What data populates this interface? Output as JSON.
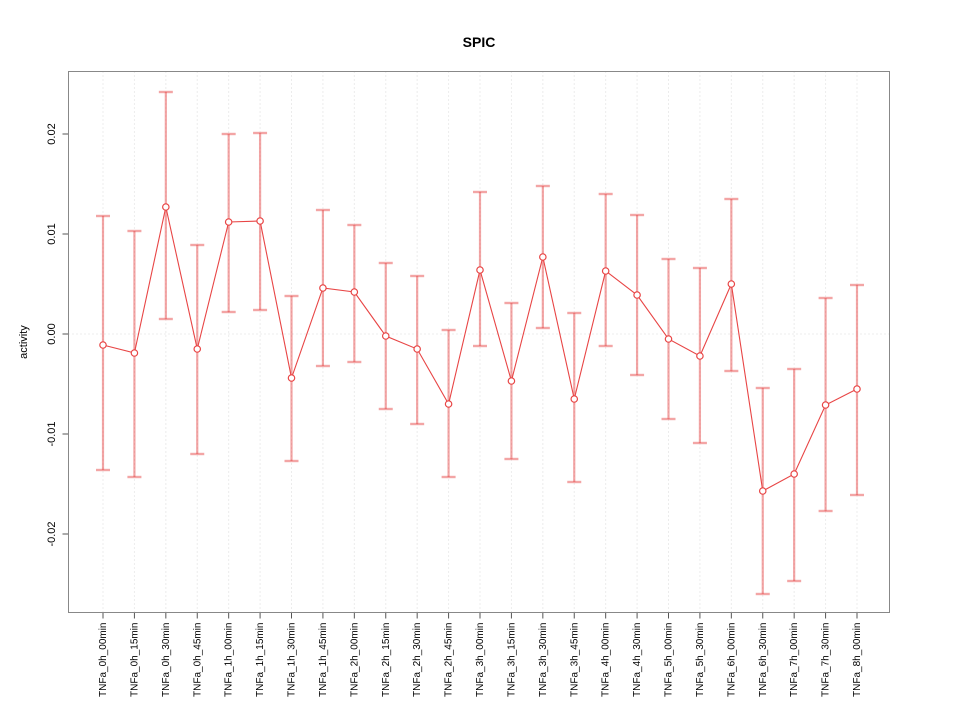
{
  "title": "SPIC",
  "chart_data": {
    "type": "scatter",
    "subtype": "points-with-error-bars",
    "title": "SPIC",
    "xlabel": "",
    "ylabel": "activity",
    "legend": "none",
    "grid": "vertical dotted gridline at every category; dotted horizontal line at y=0",
    "ylim": [
      -0.0279,
      0.0263
    ],
    "yticks": [
      0.02,
      0.01,
      0.0,
      -0.01,
      -0.02
    ],
    "ytick_labels": [
      "0.02",
      "0.01",
      "0.00",
      "-0.01",
      "-0.02"
    ],
    "categories": [
      "TNFa_0h_00min",
      "TNFa_0h_15min",
      "TNFa_0h_30min",
      "TNFa_0h_45min",
      "TNFa_1h_00min",
      "TNFa_1h_15min",
      "TNFa_1h_30min",
      "TNFa_1h_45min",
      "TNFa_2h_00min",
      "TNFa_2h_15min",
      "TNFa_2h_30min",
      "TNFa_2h_45min",
      "TNFa_3h_00min",
      "TNFa_3h_15min",
      "TNFa_3h_30min",
      "TNFa_3h_45min",
      "TNFa_4h_00min",
      "TNFa_4h_30min",
      "TNFa_5h_00min",
      "TNFa_5h_30min",
      "TNFa_6h_00min",
      "TNFa_6h_30min",
      "TNFa_7h_00min",
      "TNFa_7h_30min",
      "TNFa_8h_00min"
    ],
    "series": [
      {
        "name": "activity",
        "values": [
          -0.0011,
          -0.0019,
          0.0127,
          -0.0015,
          0.0112,
          0.0113,
          -0.0044,
          0.0046,
          0.0042,
          -0.0002,
          -0.0015,
          -0.007,
          0.0064,
          -0.0047,
          0.0077,
          -0.0065,
          0.0063,
          0.0039,
          -0.0005,
          -0.0022,
          0.005,
          -0.0157,
          -0.014,
          -0.0071,
          -0.0055
        ],
        "upper": [
          0.0118,
          0.0103,
          0.0242,
          0.0089,
          0.02,
          0.0201,
          0.0038,
          0.0124,
          0.0109,
          0.0071,
          0.0058,
          0.0004,
          0.0142,
          0.0031,
          0.0148,
          0.0021,
          0.014,
          0.0119,
          0.0075,
          0.0066,
          0.0135,
          -0.0054,
          -0.0035,
          0.0036,
          0.0049
        ],
        "lower": [
          -0.0136,
          -0.0143,
          0.0015,
          -0.012,
          0.0022,
          0.0024,
          -0.0127,
          -0.0032,
          -0.0028,
          -0.0075,
          -0.009,
          -0.0143,
          -0.0012,
          -0.0125,
          0.0006,
          -0.0148,
          -0.0012,
          -0.0041,
          -0.0085,
          -0.0109,
          -0.0037,
          -0.026,
          -0.0247,
          -0.0177,
          -0.0161
        ]
      }
    ],
    "colors": {
      "point_line": "#e84545",
      "error_bar": "rgba(231,76,76,0.5)",
      "gridline": "#d9d9d9",
      "zero_line": "#d9d9d9",
      "box": "#888888",
      "tick": "#555555",
      "text": "#000000"
    }
  }
}
